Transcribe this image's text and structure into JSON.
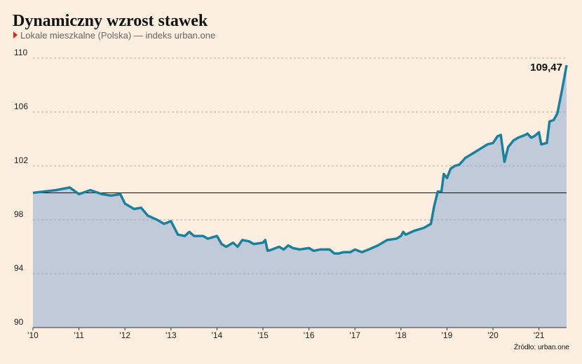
{
  "chart_data": {
    "type": "area",
    "title": "Dynamiczny wzrost stawek",
    "subtitle": "Lokale mieszkalne (Polska) — indeks urban.one",
    "source": "Źródło: urban.one",
    "end_label": "109,47",
    "line_color": "#1b7f9e",
    "fill_color": "#c1cad9",
    "baseline": 100,
    "grid": true,
    "xlim": [
      2010,
      2021.6
    ],
    "xticks": [
      {
        "value": 2010,
        "label": "'10"
      },
      {
        "value": 2011,
        "label": "'11"
      },
      {
        "value": 2012,
        "label": "'12"
      },
      {
        "value": 2013,
        "label": "'13"
      },
      {
        "value": 2014,
        "label": "'14"
      },
      {
        "value": 2015,
        "label": "'15"
      },
      {
        "value": 2016,
        "label": "'16"
      },
      {
        "value": 2017,
        "label": "'17"
      },
      {
        "value": 2018,
        "label": "'18"
      },
      {
        "value": 2019,
        "label": "'19"
      },
      {
        "value": 2020,
        "label": "'20"
      },
      {
        "value": 2021,
        "label": "'21"
      }
    ],
    "ylim": [
      90,
      110
    ],
    "yticks": [
      90,
      94,
      98,
      102,
      106,
      110
    ],
    "x": [
      2010.0,
      2010.5,
      2010.8,
      2011.0,
      2011.25,
      2011.5,
      2011.7,
      2011.9,
      2012.0,
      2012.2,
      2012.35,
      2012.5,
      2012.7,
      2012.85,
      2013.0,
      2013.15,
      2013.3,
      2013.4,
      2013.5,
      2013.7,
      2013.8,
      2014.0,
      2014.1,
      2014.2,
      2014.35,
      2014.45,
      2014.55,
      2014.7,
      2014.8,
      2015.0,
      2015.05,
      2015.1,
      2015.2,
      2015.35,
      2015.45,
      2015.55,
      2015.65,
      2015.8,
      2016.0,
      2016.1,
      2016.25,
      2016.45,
      2016.55,
      2016.65,
      2016.75,
      2016.9,
      2017.0,
      2017.15,
      2017.3,
      2017.5,
      2017.7,
      2017.9,
      2018.0,
      2018.05,
      2018.1,
      2018.3,
      2018.5,
      2018.65,
      2018.72,
      2018.8,
      2018.88,
      2018.93,
      2019.0,
      2019.08,
      2019.17,
      2019.27,
      2019.4,
      2019.5,
      2019.88,
      2020.0,
      2020.1,
      2020.17,
      2020.25,
      2020.33,
      2020.45,
      2020.55,
      2020.7,
      2020.75,
      2020.83,
      2020.9,
      2021.0,
      2021.05,
      2021.17,
      2021.23,
      2021.32,
      2021.4,
      2021.5,
      2021.6
    ],
    "values": [
      100.0,
      100.2,
      100.4,
      99.9,
      100.2,
      99.9,
      99.8,
      99.9,
      99.2,
      98.8,
      98.9,
      98.3,
      98.0,
      97.7,
      97.9,
      96.9,
      96.8,
      97.1,
      96.8,
      96.8,
      96.6,
      96.8,
      96.2,
      96.0,
      96.3,
      96.0,
      96.5,
      96.4,
      96.2,
      96.3,
      96.5,
      95.7,
      95.8,
      96.0,
      95.8,
      96.1,
      95.9,
      95.8,
      95.9,
      95.7,
      95.8,
      95.8,
      95.5,
      95.5,
      95.6,
      95.6,
      95.8,
      95.6,
      95.8,
      96.1,
      96.5,
      96.6,
      96.8,
      97.1,
      96.9,
      97.2,
      97.4,
      97.7,
      99.0,
      100.1,
      100.1,
      101.4,
      101.1,
      101.8,
      102.0,
      102.1,
      102.6,
      102.8,
      103.6,
      103.7,
      104.2,
      104.3,
      102.3,
      103.4,
      103.9,
      104.1,
      104.3,
      104.4,
      104.1,
      104.2,
      104.5,
      103.6,
      103.7,
      105.3,
      105.4,
      105.9,
      107.6,
      109.47
    ]
  }
}
